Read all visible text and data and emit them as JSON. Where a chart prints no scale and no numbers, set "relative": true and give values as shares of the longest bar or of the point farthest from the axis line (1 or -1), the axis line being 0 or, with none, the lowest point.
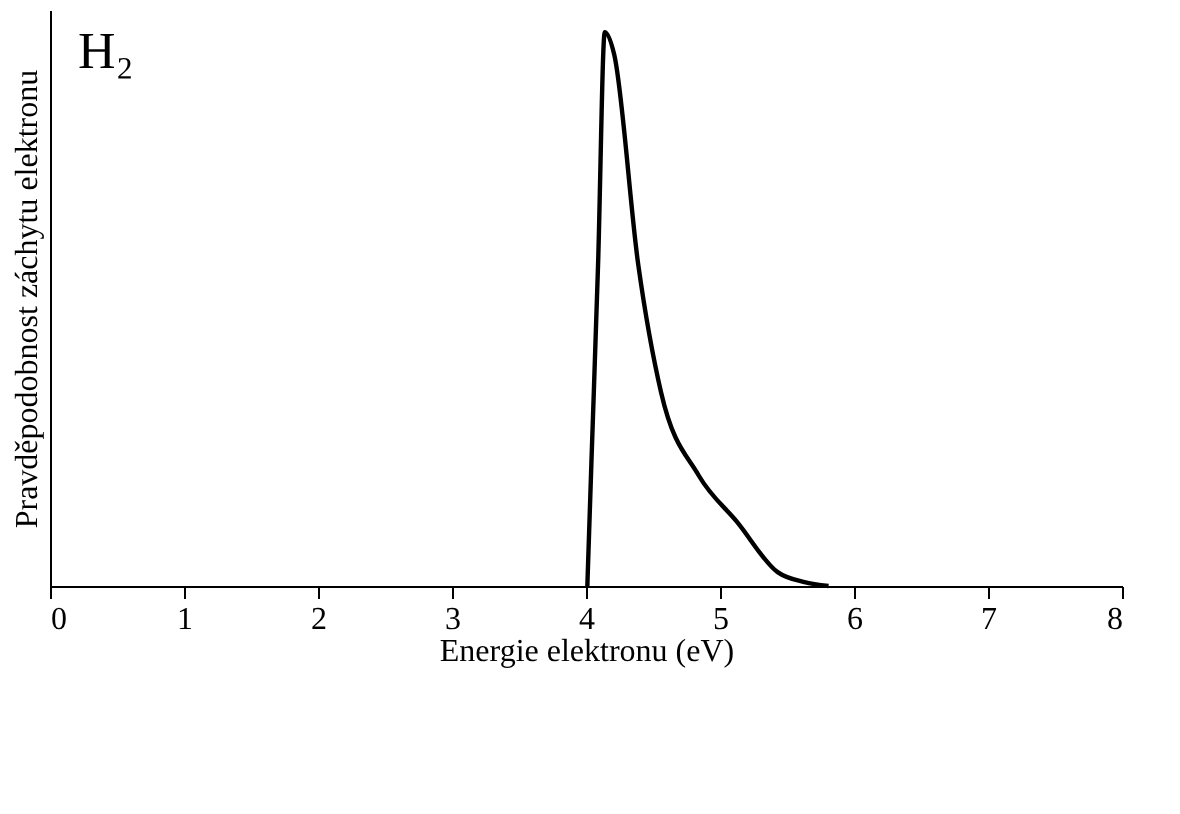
{
  "chart_data": {
    "type": "line",
    "title": "H₂",
    "xlabel": "Energie elektronu (eV)",
    "ylabel": "Pravděpodobnost záchytu elektronu",
    "relative": true,
    "xlim": [
      0,
      8
    ],
    "xticks": [
      0,
      1,
      2,
      3,
      4,
      5,
      6,
      7,
      8
    ],
    "grid": false,
    "marker": "none",
    "line_style": "solid",
    "series": [
      {
        "color": "#000000",
        "x": [
          4.01,
          4.04,
          4.09,
          4.14,
          4.21,
          4.39,
          4.56,
          4.84,
          5.13,
          5.43,
          5.63,
          5.81
        ],
        "values": [
          0,
          0.22,
          0.58,
          1,
          0.96,
          0.58,
          0.35,
          0.2,
          0.115,
          0.025,
          0.007,
          0
        ]
      }
    ]
  }
}
